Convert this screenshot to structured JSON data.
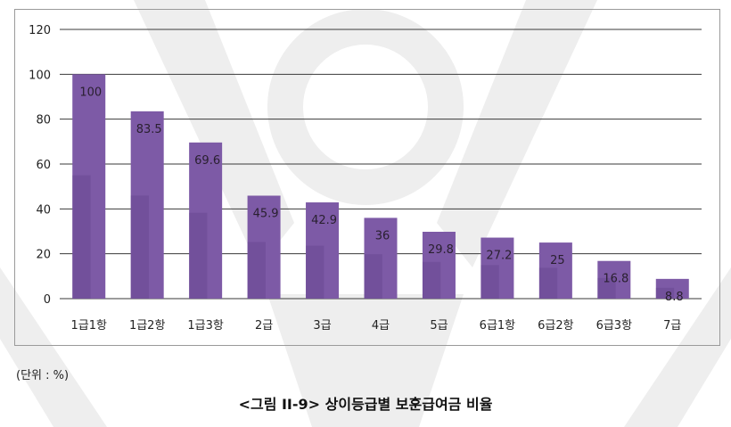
{
  "unit_note": "(단위 : %)",
  "caption": "<그림 II-9> 상이등급별 보훈급여금 비율",
  "colors": {
    "bar": "#7d5aa6",
    "bar_dark": "#5e3f88",
    "grid": "#3a3a3a",
    "watermark": "#eeeeee"
  },
  "chart_data": {
    "type": "bar",
    "categories": [
      "1급1항",
      "1급2항",
      "1급3항",
      "2급",
      "3급",
      "4급",
      "5급",
      "6급1항",
      "6급2항",
      "6급3항",
      "7급"
    ],
    "values": [
      100,
      83.5,
      69.6,
      45.9,
      42.9,
      36,
      29.8,
      27.2,
      25,
      16.8,
      8.8
    ],
    "data_labels": [
      "100",
      "83.5",
      "69.6",
      "45.9",
      "42.9",
      "36",
      "29.8",
      "27.2",
      "25",
      "16.8",
      "8.8"
    ],
    "yticks": [
      "0",
      "20",
      "40",
      "60",
      "80",
      "100",
      "120"
    ],
    "ylim": [
      0,
      120
    ],
    "grid": true,
    "legend": "none"
  }
}
